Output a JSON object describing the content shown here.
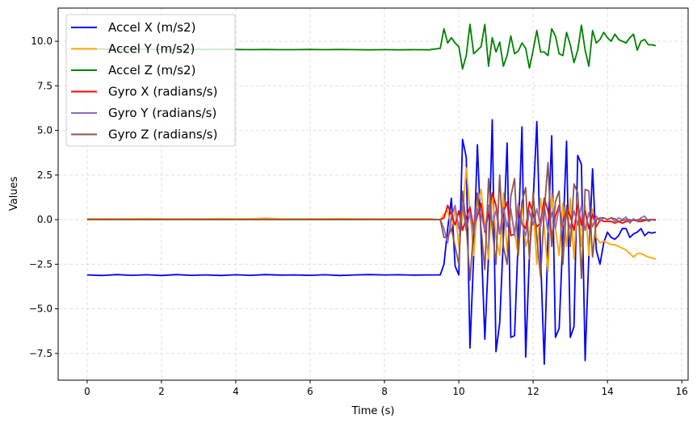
{
  "chart_data": {
    "type": "line",
    "title": "",
    "xlabel": "Time (s)",
    "ylabel": "Values",
    "xlim": [
      -0.78,
      16.17
    ],
    "ylim": [
      -9.0,
      11.86
    ],
    "xticks": [
      0,
      2,
      4,
      6,
      8,
      10,
      12,
      14,
      16
    ],
    "xtick_labels": [
      "0",
      "2",
      "4",
      "6",
      "8",
      "10",
      "12",
      "14",
      "16"
    ],
    "yticks": [
      -7.5,
      -5.0,
      -2.5,
      0.0,
      2.5,
      5.0,
      7.5,
      10.0
    ],
    "ytick_labels": [
      "−7.5",
      "−5.0",
      "−2.5",
      "0.0",
      "2.5",
      "5.0",
      "7.5",
      "10.0"
    ],
    "grid": true,
    "legend_placement": "top-left",
    "x": [
      0,
      0.4,
      0.8,
      1.2,
      1.6,
      2.0,
      2.4,
      2.8,
      3.2,
      3.6,
      4.0,
      4.4,
      4.8,
      5.2,
      5.6,
      6.0,
      6.4,
      6.8,
      7.2,
      7.6,
      8.0,
      8.4,
      8.8,
      9.2,
      9.5,
      9.6,
      9.7,
      9.8,
      9.9,
      10.0,
      10.1,
      10.2,
      10.3,
      10.4,
      10.5,
      10.6,
      10.7,
      10.8,
      10.9,
      11.0,
      11.1,
      11.2,
      11.3,
      11.4,
      11.5,
      11.6,
      11.7,
      11.8,
      11.9,
      12.0,
      12.1,
      12.2,
      12.3,
      12.4,
      12.5,
      12.6,
      12.7,
      12.8,
      12.9,
      13.0,
      13.1,
      13.2,
      13.3,
      13.4,
      13.5,
      13.6,
      13.7,
      13.8,
      13.9,
      14.0,
      14.1,
      14.2,
      14.3,
      14.4,
      14.5,
      14.6,
      14.7,
      14.8,
      14.9,
      15.0,
      15.1,
      15.2,
      15.3
    ],
    "series": [
      {
        "name": "Accel X (m/s2)",
        "color": "#0000ff",
        "values": [
          -3.1,
          -3.13,
          -3.08,
          -3.12,
          -3.09,
          -3.13,
          -3.08,
          -3.12,
          -3.1,
          -3.13,
          -3.09,
          -3.12,
          -3.08,
          -3.11,
          -3.1,
          -3.12,
          -3.09,
          -3.13,
          -3.1,
          -3.08,
          -3.1,
          -3.09,
          -3.11,
          -3.1,
          -3.1,
          -2.5,
          -0.5,
          1.2,
          -2.6,
          -3.1,
          4.5,
          3.5,
          -7.2,
          -2.0,
          4.2,
          -1.0,
          -6.7,
          -2.0,
          5.6,
          -7.4,
          -5.8,
          -1.0,
          4.3,
          -6.6,
          -6.5,
          -1.0,
          5.2,
          -7.7,
          -2.0,
          1.0,
          5.5,
          -2.0,
          -8.1,
          -1.0,
          4.7,
          -6.6,
          -6.1,
          -1.0,
          4.4,
          -6.6,
          -6.0,
          3.6,
          3.1,
          -7.9,
          -2.0,
          2.85,
          -1.7,
          -2.5,
          -1.3,
          -0.7,
          -1.0,
          -1.1,
          -0.9,
          -0.5,
          -0.5,
          -1.0,
          -0.8,
          -0.7,
          -0.5,
          -0.9,
          -0.7,
          -0.75,
          -0.7
        ]
      },
      {
        "name": "Accel Y (m/s2)",
        "color": "#ffa500",
        "values": [
          0.05,
          0.05,
          0.04,
          0.05,
          0.06,
          0.05,
          0.04,
          0.05,
          0.05,
          0.06,
          0.05,
          0.05,
          0.08,
          0.05,
          0.04,
          0.05,
          0.05,
          0.06,
          0.05,
          0.05,
          0.04,
          0.05,
          0.05,
          0.05,
          0.0,
          0.3,
          0.5,
          -0.5,
          0.6,
          -1.5,
          0.2,
          2.9,
          0.5,
          -2.0,
          0.8,
          1.7,
          -0.5,
          -2.2,
          1.5,
          -1.0,
          -2.0,
          1.5,
          -1.8,
          0.5,
          -0.7,
          -2.0,
          1.0,
          -1.5,
          -0.8,
          0.8,
          -2.5,
          1.2,
          -0.5,
          -2.9,
          1.5,
          -0.5,
          -2.0,
          0.9,
          -1.5,
          1.2,
          -2.2,
          1.5,
          -1.5,
          0.8,
          -2.0,
          0.6,
          -1.0,
          -1.3,
          -1.2,
          -1.3,
          -1.4,
          -1.4,
          -1.5,
          -1.6,
          -1.7,
          -1.9,
          -2.1,
          -1.9,
          -1.9,
          -2.0,
          -2.1,
          -2.15,
          -2.2
        ]
      },
      {
        "name": "Accel Z (m/s2)",
        "color": "#008000",
        "values": [
          9.57,
          9.56,
          9.55,
          9.56,
          9.55,
          9.55,
          9.54,
          9.55,
          9.54,
          9.55,
          9.54,
          9.53,
          9.54,
          9.53,
          9.53,
          9.54,
          9.53,
          9.54,
          9.53,
          9.52,
          9.53,
          9.52,
          9.53,
          9.52,
          9.6,
          10.7,
          9.9,
          10.2,
          9.9,
          9.7,
          8.45,
          9.2,
          10.95,
          9.3,
          9.5,
          9.7,
          10.95,
          8.6,
          10.2,
          9.4,
          9.95,
          8.6,
          9.2,
          10.3,
          9.3,
          9.45,
          9.9,
          9.6,
          8.5,
          9.5,
          10.6,
          9.4,
          9.4,
          9.2,
          10.7,
          10.3,
          9.3,
          9.2,
          10.5,
          9.8,
          8.8,
          9.5,
          10.9,
          9.5,
          8.6,
          10.6,
          9.9,
          10.1,
          10.5,
          10.2,
          10.0,
          10.4,
          10.1,
          10.0,
          9.9,
          10.2,
          10.4,
          9.5,
          10.0,
          10.1,
          9.8,
          9.8,
          9.75
        ]
      },
      {
        "name": "Gyro X (radians/s)",
        "color": "#ff0000",
        "values": [
          0,
          0,
          0,
          0,
          0,
          0,
          0,
          0,
          0,
          0,
          0,
          0,
          0,
          0,
          0,
          0,
          0,
          0,
          0,
          0,
          0,
          0,
          0,
          0,
          0.0,
          0.1,
          0.8,
          0.3,
          -0.3,
          0.5,
          -0.6,
          0.1,
          0.7,
          -0.5,
          0.2,
          0.9,
          -0.7,
          0.3,
          1.5,
          0.8,
          -0.8,
          0.4,
          1.0,
          -0.9,
          -0.8,
          0.6,
          -0.2,
          -0.5,
          1.0,
          0.3,
          -0.4,
          -0.2,
          1.2,
          0.5,
          -0.9,
          0.2,
          0.8,
          -0.4,
          0.7,
          0.2,
          -0.6,
          0.9,
          -0.3,
          0.5,
          -0.5,
          0.3,
          -0.4,
          0.0,
          -0.1,
          -0.1,
          -0.1,
          -0.2,
          -0.1,
          -0.2,
          -0.1,
          -0.1,
          0.0,
          -0.1,
          -0.1,
          -0.05,
          0.0,
          0.0,
          0.0
        ]
      },
      {
        "name": "Gyro Y (radians/s)",
        "color": "#9467bd",
        "values": [
          0,
          0,
          0,
          0,
          0,
          0,
          0,
          0,
          0,
          0,
          0,
          0,
          0,
          0,
          0,
          0,
          0,
          0,
          0,
          0,
          0,
          0,
          0,
          0,
          0.0,
          -0.5,
          -1.3,
          0.2,
          0.8,
          -0.5,
          0.8,
          -0.6,
          0.4,
          -0.8,
          0.6,
          0.3,
          -0.6,
          0.8,
          -0.3,
          0.5,
          -0.8,
          0.7,
          -0.4,
          0.6,
          -0.9,
          0.9,
          -0.2,
          -0.9,
          0.5,
          -0.3,
          0.6,
          -0.4,
          0.8,
          -0.7,
          0.4,
          -0.5,
          0.7,
          -0.3,
          0.3,
          -0.5,
          0.5,
          -0.3,
          0.8,
          -0.6,
          0.4,
          -0.4,
          0.2,
          -0.1,
          0.1,
          0.0,
          0.1,
          -0.1,
          0.1,
          0.0,
          0.15,
          -0.2,
          0.05,
          -0.1,
          0.1,
          0.2,
          -0.1,
          0.0,
          -0.05
        ]
      },
      {
        "name": "Gyro Z (radians/s)",
        "color": "#8c564b",
        "values": [
          0,
          0,
          0,
          0,
          0,
          0,
          0,
          0,
          0,
          0,
          0,
          0,
          0,
          0,
          0,
          0,
          0,
          0,
          0,
          0,
          0,
          0,
          0,
          0,
          0.0,
          -1.0,
          -1.0,
          -0.5,
          -1.5,
          -2.5,
          1.6,
          -0.3,
          -3.4,
          -0.5,
          1.5,
          -0.5,
          -2.8,
          2.3,
          -0.5,
          -2.5,
          2.5,
          -1.5,
          -2.5,
          1.3,
          2.3,
          -2.0,
          1.0,
          1.8,
          -2.2,
          1.5,
          -1.0,
          -3.2,
          0.5,
          3.2,
          -1.5,
          1.0,
          1.6,
          -2.5,
          0.8,
          -1.5,
          2.0,
          1.5,
          -3.3,
          1.7,
          1.6,
          -2.1,
          0.0,
          0.1,
          0.1,
          0.0,
          0.1,
          0.05,
          -0.1,
          -0.05,
          0.0,
          0.0,
          -0.05,
          0.0,
          0.0,
          0.0,
          0.0,
          0.0,
          0.0
        ]
      }
    ]
  }
}
